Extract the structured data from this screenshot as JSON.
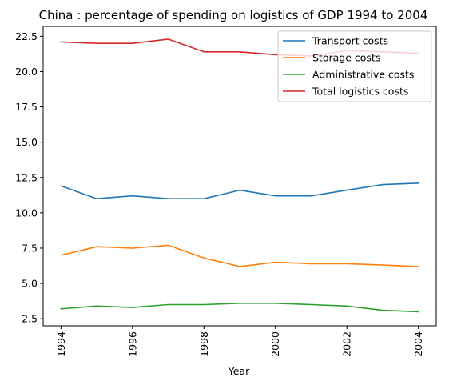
{
  "chart_data": {
    "type": "line",
    "title": "China : percentage of spending on logistics of GDP 1994 to 2004",
    "xlabel": "Year",
    "ylabel": "",
    "x": [
      1994,
      1995,
      1996,
      1997,
      1998,
      1999,
      2000,
      2001,
      2002,
      2003,
      2004
    ],
    "xticks": [
      "1994",
      "1996",
      "1998",
      "2000",
      "2002",
      "2004"
    ],
    "yticks": [
      "2.5",
      "5.0",
      "7.5",
      "10.0",
      "12.5",
      "15.0",
      "17.5",
      "20.0",
      "22.5"
    ],
    "ylim": [
      2.0,
      23.2
    ],
    "xlim": [
      1993.5,
      2004.5
    ],
    "grid": false,
    "legend_position": "top-right",
    "series": [
      {
        "name": "Transport costs",
        "color": "#1f77b4",
        "values": [
          11.9,
          11.0,
          11.2,
          11.0,
          11.0,
          11.6,
          11.2,
          11.2,
          11.6,
          12.0,
          12.1
        ]
      },
      {
        "name": "Storage costs",
        "color": "#ff7f0e",
        "values": [
          7.0,
          7.6,
          7.5,
          7.7,
          6.8,
          6.2,
          6.5,
          6.4,
          6.4,
          6.3,
          6.2
        ]
      },
      {
        "name": "Administrative costs",
        "color": "#2ca02c",
        "values": [
          3.2,
          3.4,
          3.3,
          3.5,
          3.5,
          3.6,
          3.6,
          3.5,
          3.4,
          3.1,
          3.0
        ]
      },
      {
        "name": "Total logistics costs",
        "color": "#d62728",
        "values": [
          22.1,
          22.0,
          22.0,
          22.3,
          21.4,
          21.4,
          21.2,
          21.1,
          21.5,
          21.4,
          21.3
        ]
      }
    ]
  }
}
